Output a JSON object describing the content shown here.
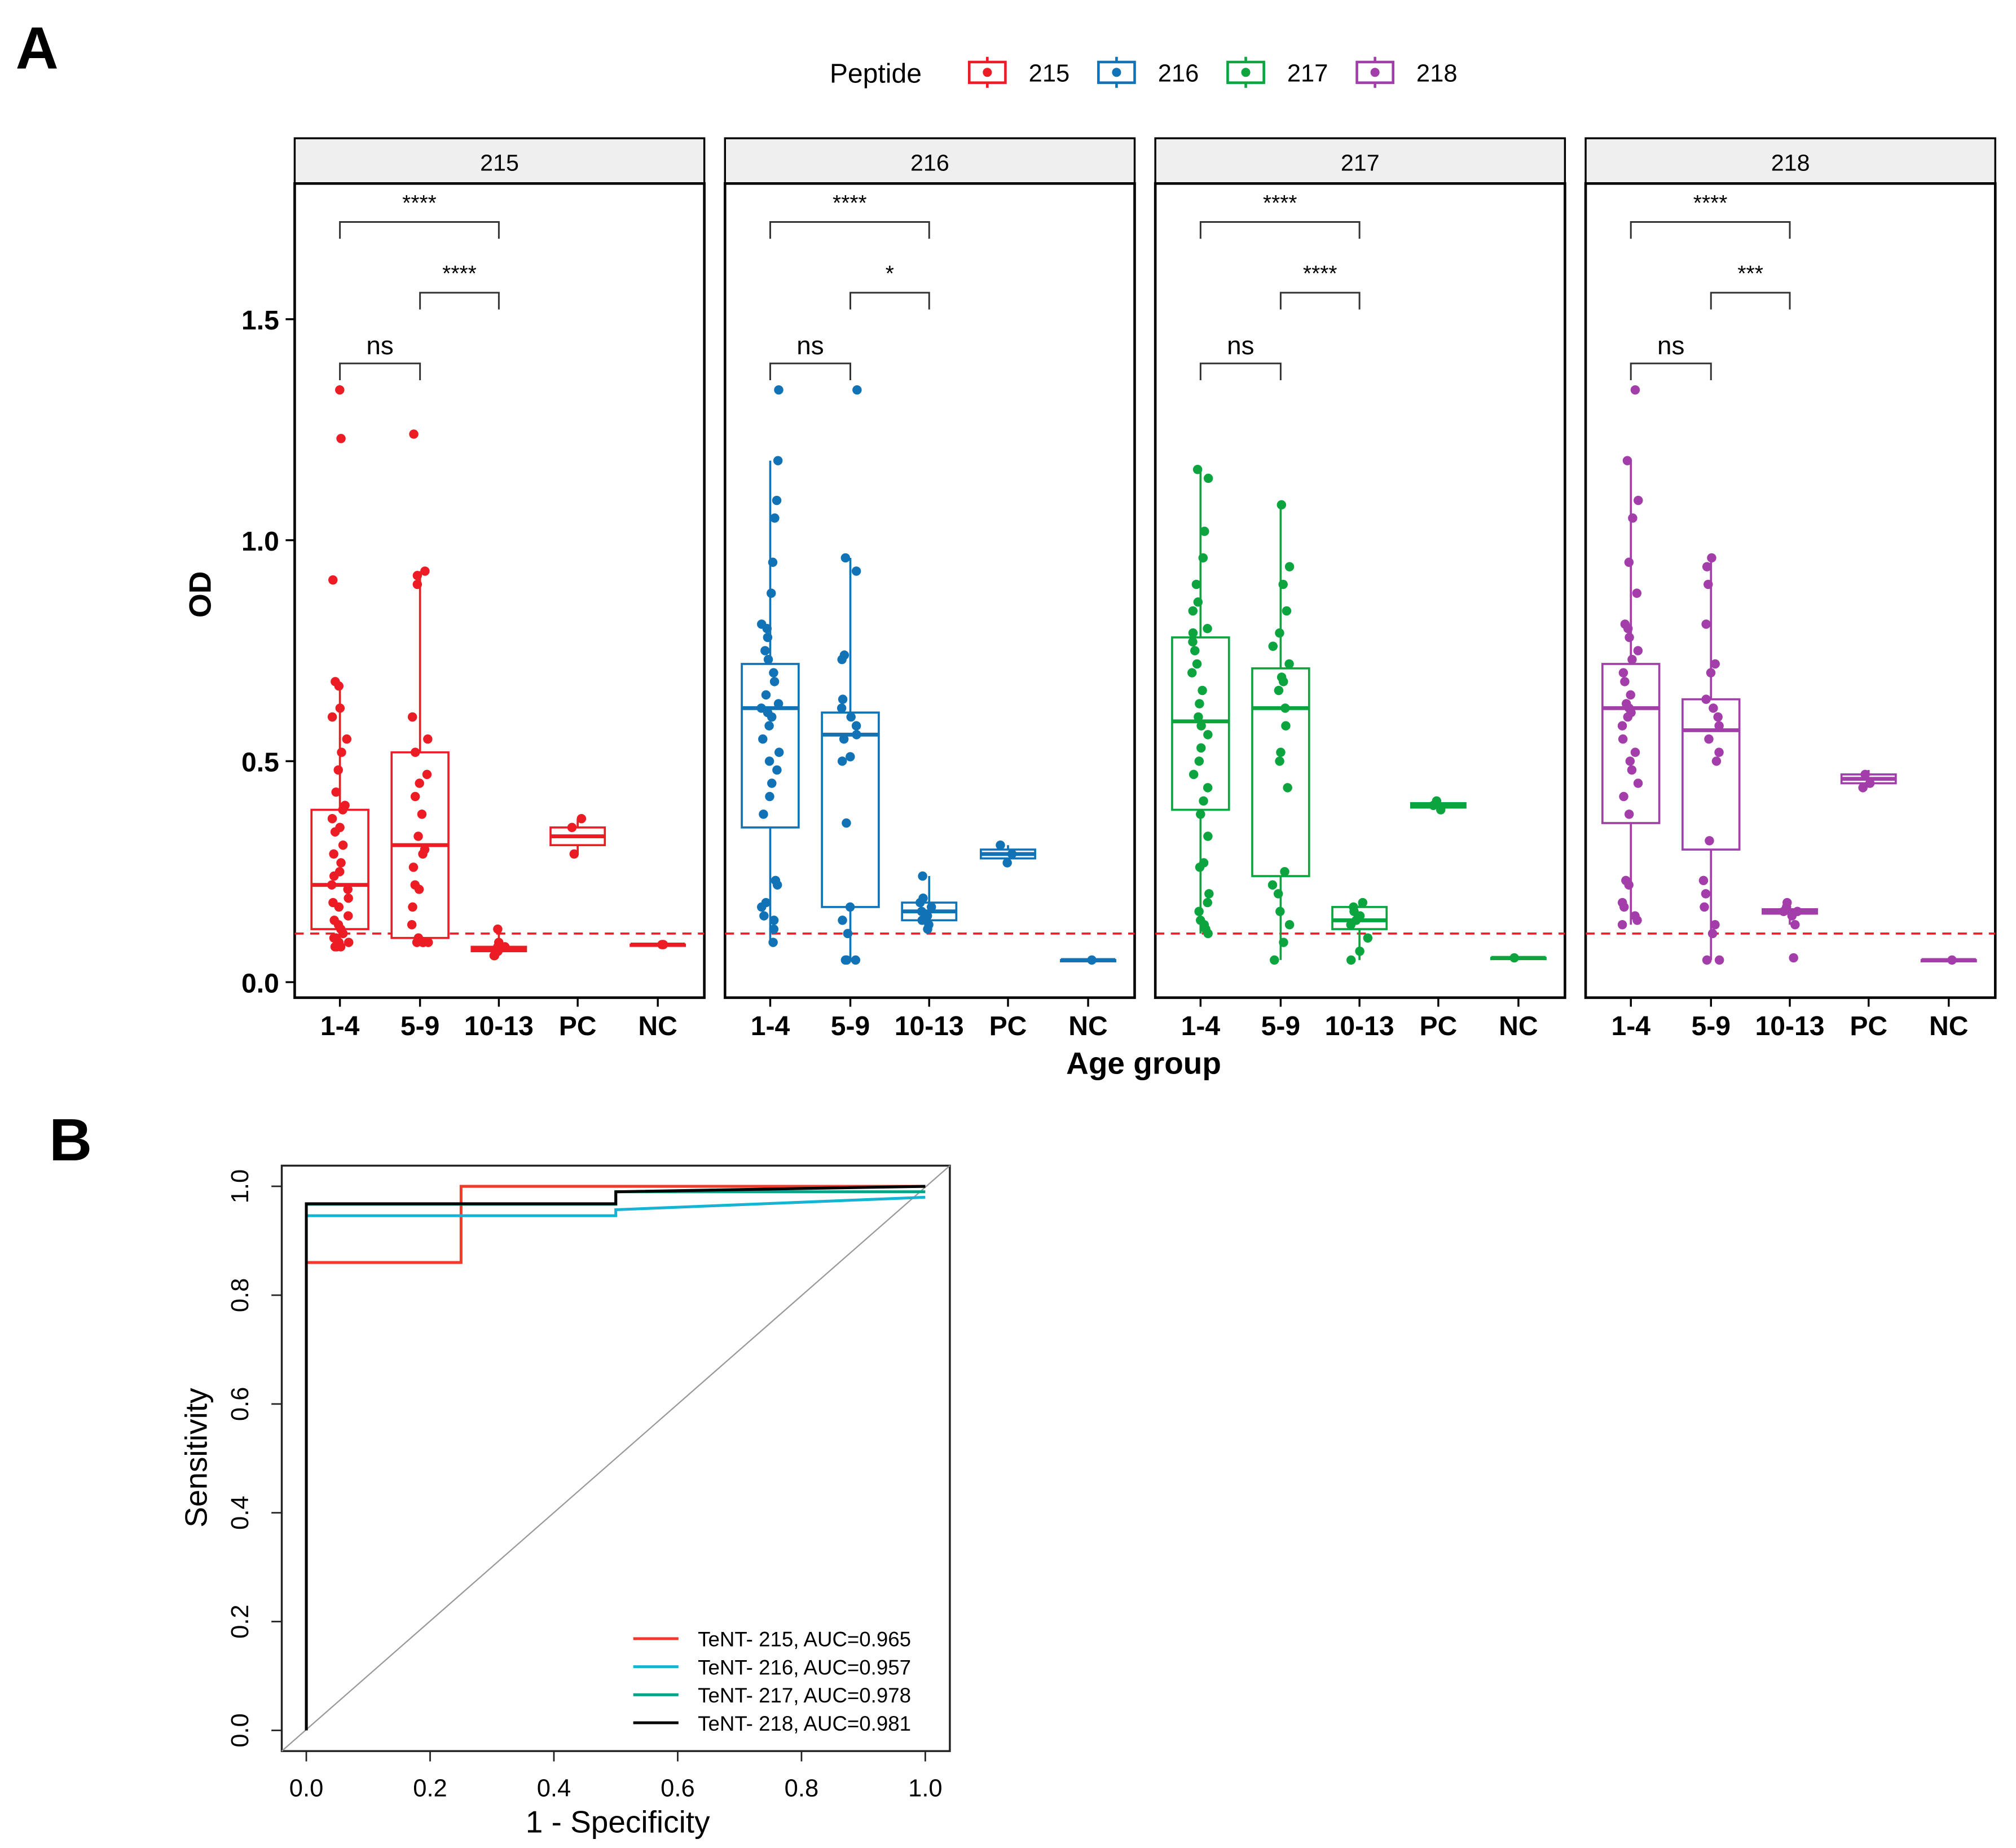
{
  "panel_labels": {
    "a": "A",
    "b": "B"
  },
  "legend": {
    "title": "Peptide",
    "items": [
      {
        "label": "215",
        "color": "#EC1C24"
      },
      {
        "label": "216",
        "color": "#1272B6"
      },
      {
        "label": "217",
        "color": "#0BA43F"
      },
      {
        "label": "218",
        "color": "#A23DAA"
      }
    ]
  },
  "chart_data": [
    {
      "type": "box",
      "title": "",
      "xlabel": "Age group",
      "ylabel": "OD",
      "ylim": [
        0,
        1.85
      ],
      "yticks": [
        "0.0",
        "0.5",
        "1.0",
        "1.5"
      ],
      "ytick_values": [
        0,
        0.5,
        1.0,
        1.5
      ],
      "categories": [
        "1-4",
        "5-9",
        "10-13",
        "PC",
        "NC"
      ],
      "cutoff_line": {
        "value": 0.11,
        "color": "#EC1C24",
        "style": "dashed"
      },
      "facets": [
        {
          "name": "215",
          "color": "#EC1C24",
          "boxes": [
            {
              "q1": 0.12,
              "median": 0.22,
              "q3": 0.39,
              "low": 0.08,
              "high": 0.68
            },
            {
              "q1": 0.1,
              "median": 0.31,
              "q3": 0.52,
              "low": 0.09,
              "high": 0.93
            },
            {
              "q1": 0.07,
              "median": 0.075,
              "q3": 0.08,
              "low": 0.06,
              "high": 0.12
            },
            {
              "q1": 0.31,
              "median": 0.33,
              "q3": 0.35,
              "low": 0.29,
              "high": 0.37
            },
            {
              "q1": 0.085,
              "median": 0.085,
              "q3": 0.085,
              "low": 0.085,
              "high": 0.085
            }
          ],
          "points": [
            [
              1.34,
              1.23,
              0.91,
              0.68,
              0.67,
              0.62,
              0.6,
              0.55,
              0.52,
              0.48,
              0.43,
              0.4,
              0.39,
              0.37,
              0.35,
              0.34,
              0.31,
              0.29,
              0.27,
              0.25,
              0.24,
              0.22,
              0.21,
              0.19,
              0.18,
              0.17,
              0.15,
              0.14,
              0.13,
              0.12,
              0.11,
              0.1,
              0.1,
              0.09,
              0.09,
              0.08,
              0.08,
              0.08
            ],
            [
              1.24,
              0.93,
              0.92,
              0.9,
              0.6,
              0.55,
              0.52,
              0.47,
              0.45,
              0.42,
              0.38,
              0.33,
              0.3,
              0.29,
              0.26,
              0.22,
              0.21,
              0.17,
              0.13,
              0.1,
              0.09,
              0.09,
              0.09,
              0.09
            ],
            [
              0.12,
              0.09,
              0.08,
              0.08,
              0.07,
              0.07,
              0.06,
              0.06
            ],
            [
              0.37,
              0.35,
              0.29
            ],
            [
              0.085,
              0.085
            ]
          ],
          "comparisons": [
            {
              "groups": [
                "1-4",
                "10-13"
              ],
              "y": 1.72,
              "label": "****"
            },
            {
              "groups": [
                "5-9",
                "10-13"
              ],
              "y": 1.56,
              "label": "****"
            },
            {
              "groups": [
                "1-4",
                "5-9"
              ],
              "y": 1.4,
              "label": "ns"
            }
          ]
        },
        {
          "name": "216",
          "color": "#1272B6",
          "boxes": [
            {
              "q1": 0.35,
              "median": 0.62,
              "q3": 0.72,
              "low": 0.09,
              "high": 1.18
            },
            {
              "q1": 0.17,
              "median": 0.56,
              "q3": 0.61,
              "low": 0.05,
              "high": 0.96
            },
            {
              "q1": 0.14,
              "median": 0.16,
              "q3": 0.18,
              "low": 0.12,
              "high": 0.24
            },
            {
              "q1": 0.28,
              "median": 0.29,
              "q3": 0.3,
              "low": 0.27,
              "high": 0.31
            },
            {
              "q1": 0.05,
              "median": 0.05,
              "q3": 0.05,
              "low": 0.05,
              "high": 0.05
            }
          ],
          "points": [
            [
              1.34,
              1.18,
              1.09,
              1.05,
              0.95,
              0.88,
              0.81,
              0.8,
              0.78,
              0.75,
              0.73,
              0.7,
              0.68,
              0.65,
              0.63,
              0.62,
              0.61,
              0.6,
              0.58,
              0.55,
              0.52,
              0.5,
              0.48,
              0.45,
              0.42,
              0.38,
              0.23,
              0.22,
              0.18,
              0.17,
              0.15,
              0.14,
              0.12,
              0.09
            ],
            [
              1.34,
              0.96,
              0.93,
              0.74,
              0.73,
              0.64,
              0.62,
              0.6,
              0.58,
              0.56,
              0.55,
              0.51,
              0.5,
              0.36,
              0.17,
              0.14,
              0.11,
              0.05,
              0.05,
              0.05
            ],
            [
              0.24,
              0.19,
              0.18,
              0.17,
              0.16,
              0.15,
              0.14,
              0.13,
              0.12
            ],
            [
              0.31,
              0.29,
              0.27
            ],
            [
              0.05
            ]
          ],
          "comparisons": [
            {
              "groups": [
                "1-4",
                "10-13"
              ],
              "y": 1.72,
              "label": "****"
            },
            {
              "groups": [
                "5-9",
                "10-13"
              ],
              "y": 1.56,
              "label": "*"
            },
            {
              "groups": [
                "1-4",
                "5-9"
              ],
              "y": 1.4,
              "label": "ns"
            }
          ]
        },
        {
          "name": "217",
          "color": "#0BA43F",
          "boxes": [
            {
              "q1": 0.39,
              "median": 0.59,
              "q3": 0.78,
              "low": 0.11,
              "high": 1.16
            },
            {
              "q1": 0.24,
              "median": 0.62,
              "q3": 0.71,
              "low": 0.05,
              "high": 1.08
            },
            {
              "q1": 0.12,
              "median": 0.14,
              "q3": 0.17,
              "low": 0.05,
              "high": 0.18
            },
            {
              "q1": 0.395,
              "median": 0.4,
              "q3": 0.405,
              "low": 0.39,
              "high": 0.41
            },
            {
              "q1": 0.055,
              "median": 0.055,
              "q3": 0.055,
              "low": 0.055,
              "high": 0.055
            }
          ],
          "points": [
            [
              1.16,
              1.14,
              1.02,
              0.96,
              0.9,
              0.86,
              0.84,
              0.8,
              0.79,
              0.77,
              0.75,
              0.72,
              0.7,
              0.66,
              0.63,
              0.6,
              0.58,
              0.56,
              0.53,
              0.5,
              0.47,
              0.44,
              0.41,
              0.38,
              0.33,
              0.27,
              0.26,
              0.2,
              0.18,
              0.16,
              0.14,
              0.13,
              0.12,
              0.11
            ],
            [
              1.08,
              0.94,
              0.9,
              0.84,
              0.79,
              0.76,
              0.72,
              0.69,
              0.68,
              0.66,
              0.62,
              0.58,
              0.52,
              0.5,
              0.44,
              0.25,
              0.22,
              0.2,
              0.16,
              0.13,
              0.09,
              0.05
            ],
            [
              0.18,
              0.17,
              0.16,
              0.15,
              0.14,
              0.13,
              0.1,
              0.07,
              0.05
            ],
            [
              0.41,
              0.4,
              0.39
            ],
            [
              0.055
            ]
          ],
          "comparisons": [
            {
              "groups": [
                "1-4",
                "10-13"
              ],
              "y": 1.72,
              "label": "****"
            },
            {
              "groups": [
                "5-9",
                "10-13"
              ],
              "y": 1.56,
              "label": "****"
            },
            {
              "groups": [
                "1-4",
                "5-9"
              ],
              "y": 1.4,
              "label": "ns"
            }
          ]
        },
        {
          "name": "218",
          "color": "#A23DAA",
          "boxes": [
            {
              "q1": 0.36,
              "median": 0.62,
              "q3": 0.72,
              "low": 0.13,
              "high": 1.18
            },
            {
              "q1": 0.3,
              "median": 0.57,
              "q3": 0.64,
              "low": 0.05,
              "high": 0.96
            },
            {
              "q1": 0.155,
              "median": 0.16,
              "q3": 0.165,
              "low": 0.13,
              "high": 0.18
            },
            {
              "q1": 0.45,
              "median": 0.46,
              "q3": 0.47,
              "low": 0.44,
              "high": 0.48
            },
            {
              "q1": 0.05,
              "median": 0.05,
              "q3": 0.05,
              "low": 0.05,
              "high": 0.05
            }
          ],
          "points": [
            [
              1.34,
              1.18,
              1.09,
              1.05,
              0.95,
              0.88,
              0.81,
              0.8,
              0.78,
              0.75,
              0.73,
              0.7,
              0.68,
              0.65,
              0.63,
              0.62,
              0.61,
              0.6,
              0.58,
              0.55,
              0.52,
              0.5,
              0.48,
              0.45,
              0.42,
              0.38,
              0.23,
              0.22,
              0.18,
              0.17,
              0.15,
              0.14,
              0.13
            ],
            [
              0.96,
              0.94,
              0.9,
              0.81,
              0.72,
              0.7,
              0.64,
              0.62,
              0.6,
              0.58,
              0.55,
              0.52,
              0.5,
              0.32,
              0.23,
              0.2,
              0.17,
              0.13,
              0.11,
              0.05,
              0.05
            ],
            [
              0.18,
              0.17,
              0.16,
              0.16,
              0.15,
              0.13,
              0.055
            ],
            [
              0.47,
              0.45,
              0.44
            ],
            [
              0.05
            ]
          ],
          "comparisons": [
            {
              "groups": [
                "1-4",
                "10-13"
              ],
              "y": 1.72,
              "label": "****"
            },
            {
              "groups": [
                "5-9",
                "10-13"
              ],
              "y": 1.56,
              "label": "***"
            },
            {
              "groups": [
                "1-4",
                "5-9"
              ],
              "y": 1.4,
              "label": "ns"
            }
          ]
        }
      ]
    },
    {
      "type": "line",
      "title": "",
      "xlabel": "1 -  Specificity",
      "ylabel": "Sensitivity",
      "xlim": [
        0,
        1
      ],
      "ylim": [
        0,
        1
      ],
      "xticks": [
        "0.0",
        "0.2",
        "0.4",
        "0.6",
        "0.8",
        "1.0"
      ],
      "yticks": [
        "0.0",
        "0.2",
        "0.4",
        "0.6",
        "0.8",
        "1.0"
      ],
      "tick_values": [
        0,
        0.2,
        0.4,
        0.6,
        0.8,
        1.0
      ],
      "legend_position": "bottom-right",
      "series": [
        {
          "name": "TeNT- 215, AUC=0.965",
          "color": "#F5382A",
          "x": [
            0,
            0,
            0.25,
            0.25,
            1
          ],
          "y": [
            0,
            0.86,
            0.86,
            1.0,
            1.0
          ]
        },
        {
          "name": "TeNT- 216, AUC=0.957",
          "color": "#14B4D2",
          "x": [
            0,
            0,
            0.5,
            0.5,
            1
          ],
          "y": [
            0,
            0.946,
            0.946,
            0.957,
            0.98
          ]
        },
        {
          "name": "TeNT- 217, AUC=0.978",
          "color": "#0AA38A",
          "x": [
            0,
            0,
            0.5,
            0.5,
            1
          ],
          "y": [
            0,
            0.967,
            0.967,
            0.99,
            0.99
          ]
        },
        {
          "name": "TeNT- 218, AUC=0.981",
          "color": "#000000",
          "x": [
            0,
            0,
            0.5,
            0.5,
            1
          ],
          "y": [
            0,
            0.968,
            0.968,
            0.99,
            1.0
          ]
        }
      ],
      "reference_line": {
        "from": [
          0,
          0
        ],
        "to": [
          1,
          1
        ],
        "color": "#999999"
      }
    }
  ]
}
